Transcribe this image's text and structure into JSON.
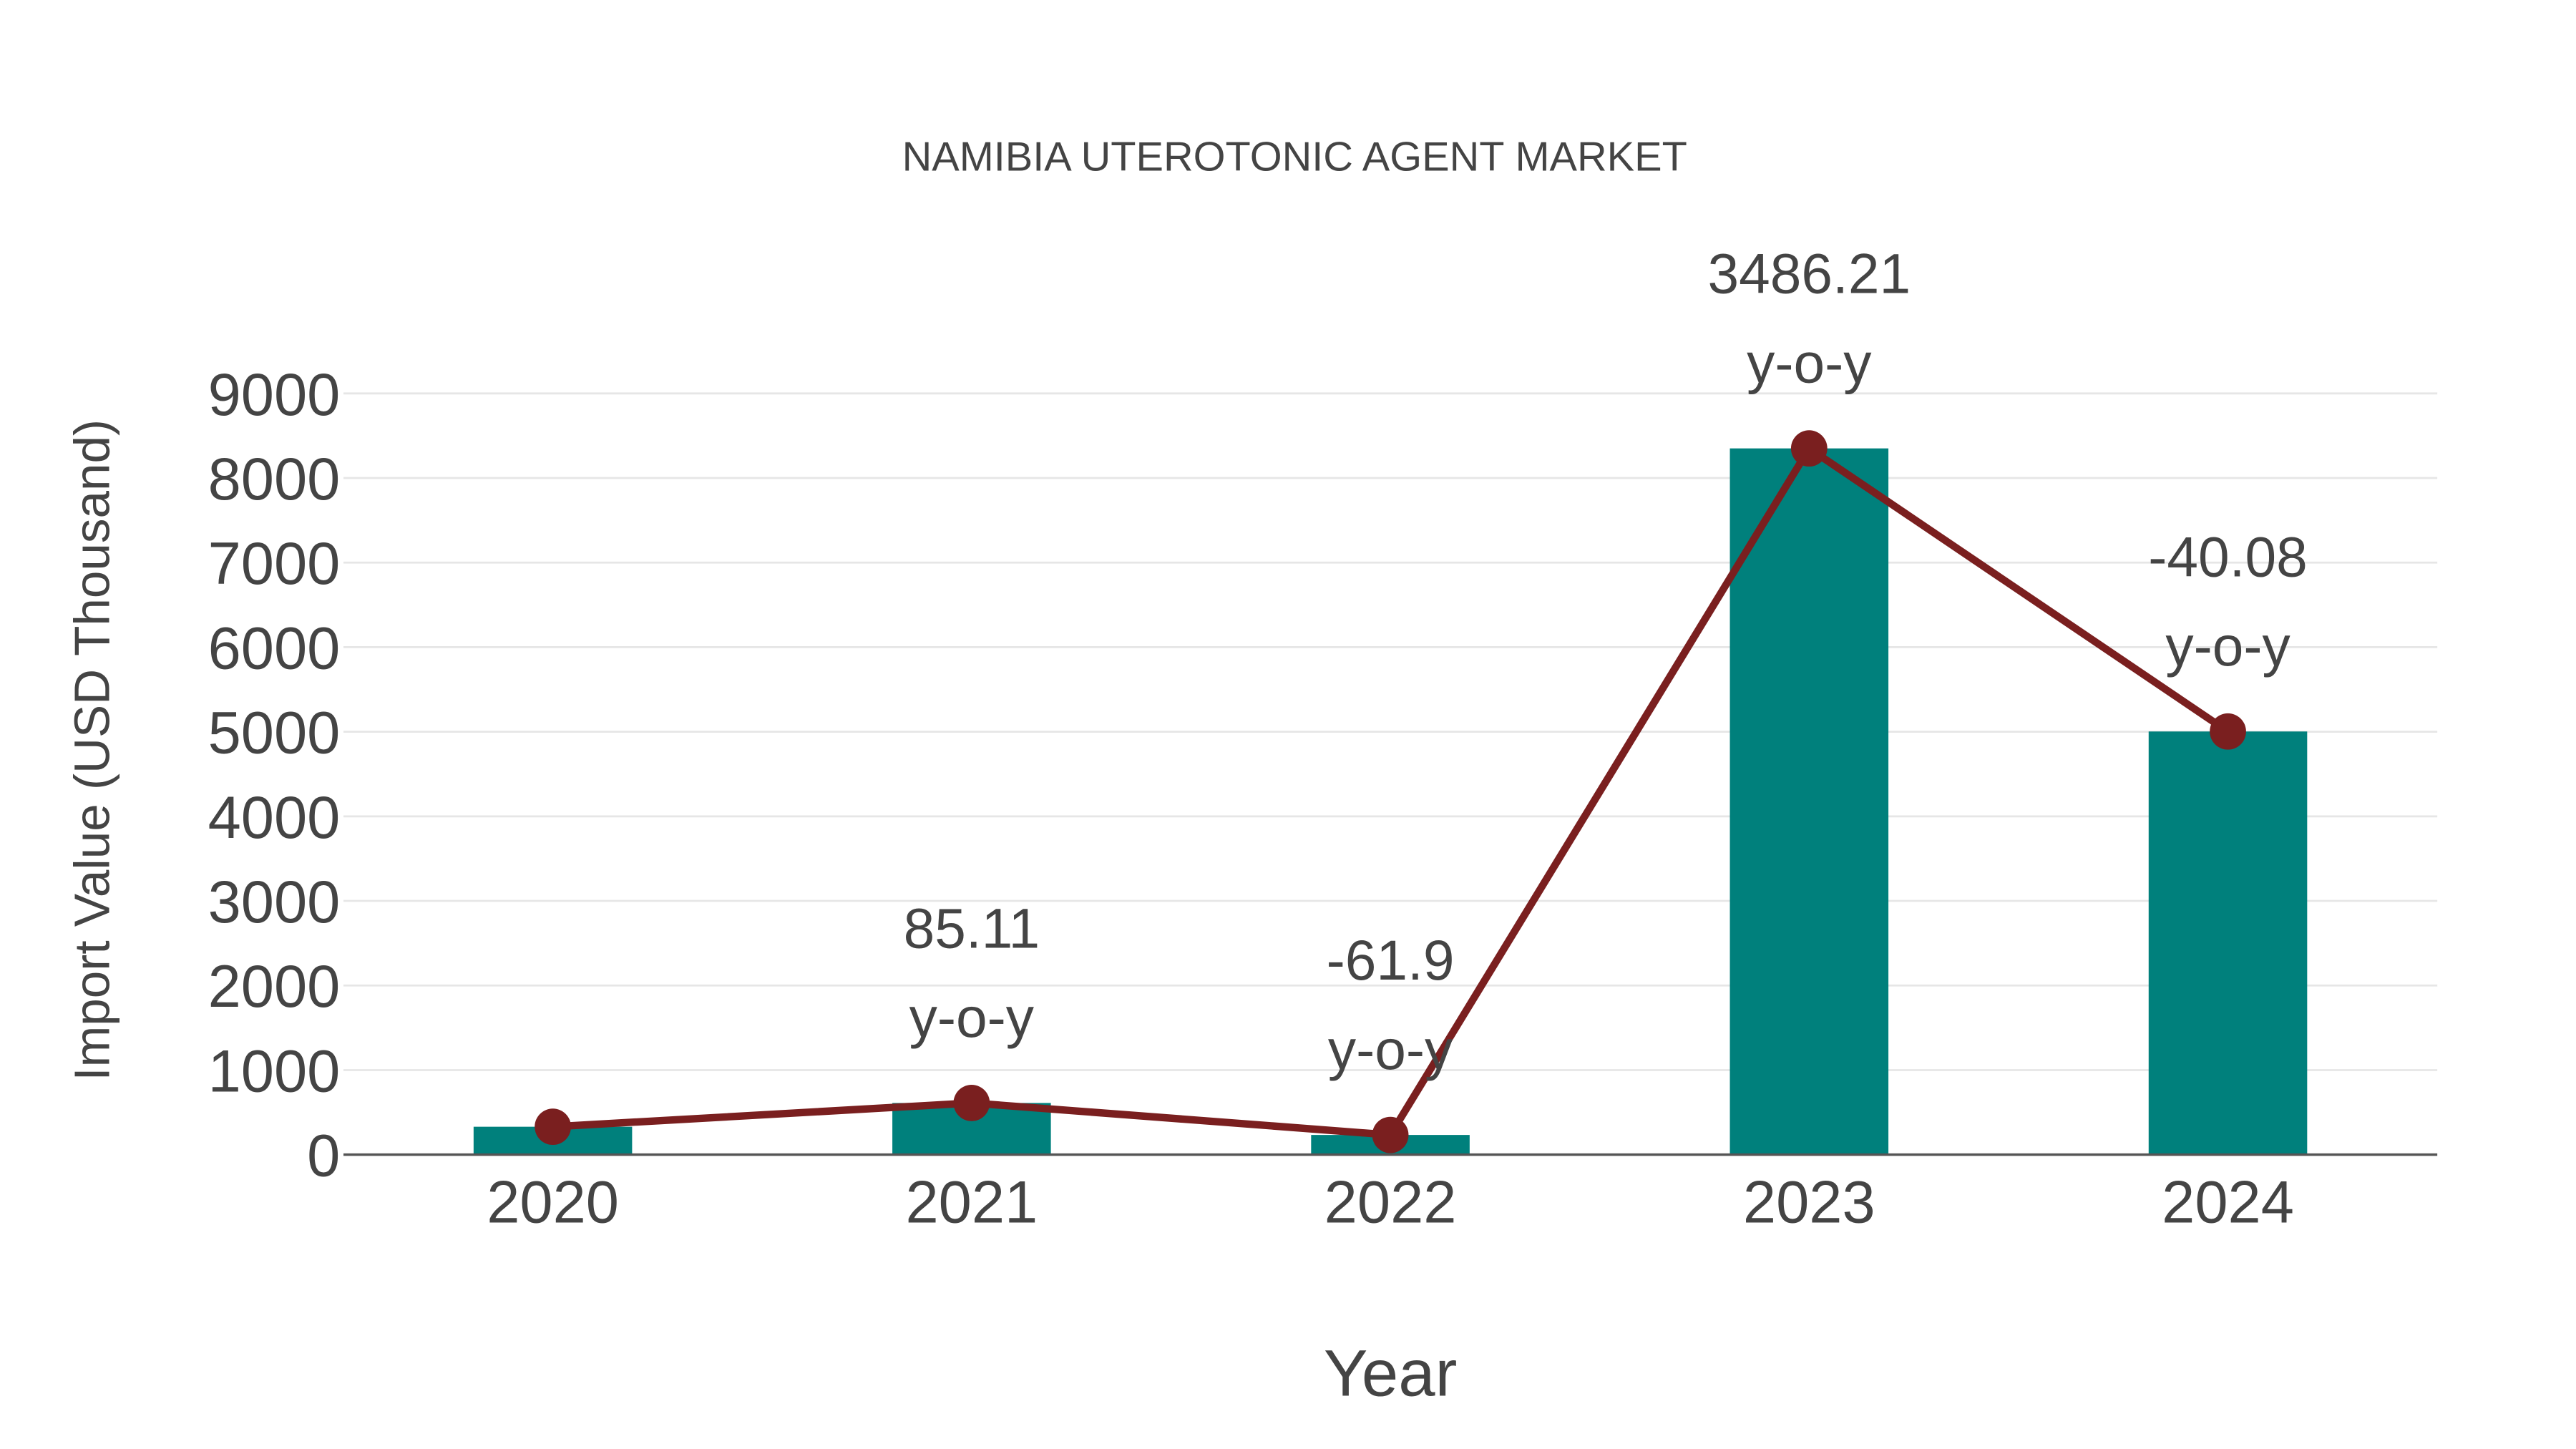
{
  "chart_data": {
    "type": "bar",
    "title": "NAMIBIA UTEROTONIC AGENT MARKET",
    "xlabel": "Year",
    "ylabel": "Import Value (USD Thousand)",
    "categories": [
      "2020",
      "2021",
      "2022",
      "2023",
      "2024"
    ],
    "values": [
      330,
      611,
      233,
      8350,
      5003
    ],
    "ylim": [
      0,
      9000
    ],
    "yticks": [
      "0",
      "1000",
      "2000",
      "3000",
      "4000",
      "5000",
      "6000",
      "7000",
      "8000",
      "9000"
    ],
    "grid": true,
    "bar_color": "#00807c",
    "line_color": "#7a1f1f",
    "annotations": [
      {
        "category": "2021",
        "value": "85.11",
        "suffix": "y-o-y"
      },
      {
        "category": "2022",
        "value": "-61.9",
        "suffix": "y-o-y"
      },
      {
        "category": "2023",
        "value": "3486.21",
        "suffix": "y-o-y"
      },
      {
        "category": "2024",
        "value": "-40.08",
        "suffix": "y-o-y"
      }
    ]
  }
}
